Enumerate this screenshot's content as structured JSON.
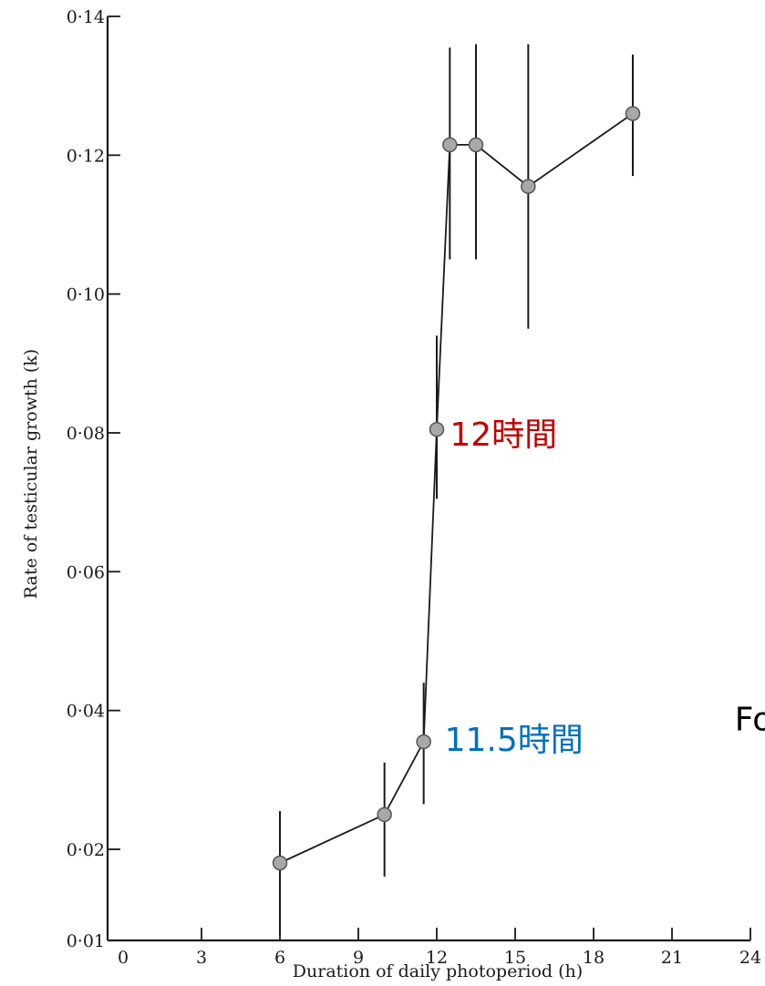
{
  "chart_data": {
    "type": "scatter",
    "xlabel": "Duration of daily photoperiod (h)",
    "ylabel": "Rate of testicular growth (k)",
    "x_ticks": [
      0,
      3,
      6,
      9,
      12,
      15,
      18,
      21,
      24
    ],
    "x_tick_labels": [
      "0",
      "3",
      "6",
      "9",
      "12",
      "15",
      "18",
      "21",
      "24"
    ],
    "y_ticks": [
      0.01,
      0.02,
      0.04,
      0.06,
      0.08,
      0.1,
      0.12,
      0.14
    ],
    "y_tick_labels": [
      "0·01",
      "0·02",
      "0·04",
      "0·06",
      "0·08",
      "0·10",
      "0·12",
      "0·14"
    ],
    "xlim": [
      0,
      24
    ],
    "ylim": [
      0.01,
      0.14
    ],
    "grid": false,
    "series": [
      {
        "points": [
          {
            "x": 6.0,
            "y": 0.0185,
            "err_low": 0.0105,
            "err_high": 0.0255
          },
          {
            "x": 10.0,
            "y": 0.025,
            "err_low": 0.017,
            "err_high": 0.0325
          },
          {
            "x": 11.5,
            "y": 0.0355,
            "err_low": 0.0265,
            "err_high": 0.044
          },
          {
            "x": 12.0,
            "y": 0.0805,
            "err_low": 0.0705,
            "err_high": 0.094
          },
          {
            "x": 12.5,
            "y": 0.1215,
            "err_low": 0.105,
            "err_high": 0.1355
          },
          {
            "x": 13.5,
            "y": 0.1215,
            "err_low": 0.105,
            "err_high": 0.136
          },
          {
            "x": 15.5,
            "y": 0.1155,
            "err_low": 0.095,
            "err_high": 0.136
          },
          {
            "x": 19.5,
            "y": 0.126,
            "err_low": 0.117,
            "err_high": 0.1345
          }
        ]
      }
    ],
    "annotations": [
      {
        "text": "12時間",
        "x": 12.5,
        "y": 0.08,
        "color": "#c00000"
      },
      {
        "text": "11.5時間",
        "x": 12.3,
        "y": 0.036,
        "color": "#0070c0"
      },
      {
        "text": "Fol",
        "x": 23.4,
        "y": 0.039,
        "color": "#000000"
      }
    ]
  }
}
